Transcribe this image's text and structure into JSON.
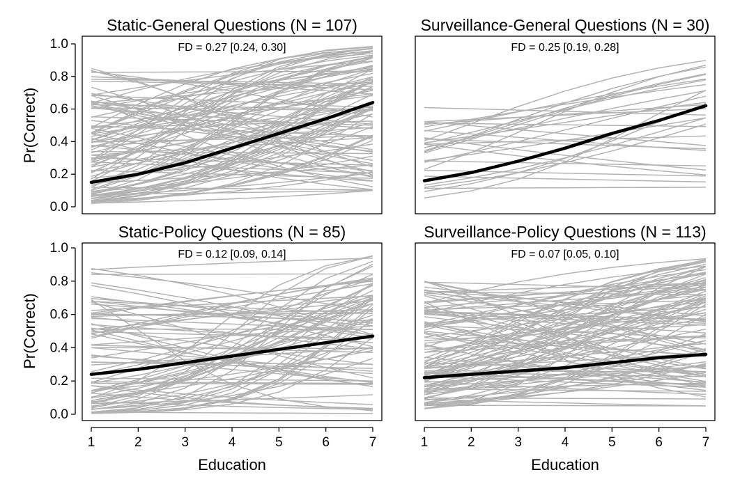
{
  "chart_data": [
    {
      "type": "line",
      "title": "Static-General Questions (N = 107)",
      "annotation": "FD = 0.27 [0.24, 0.30]",
      "xlabel": "",
      "ylabel": "Pr(Correct)",
      "x": [
        1,
        2,
        3,
        4,
        5,
        6,
        7
      ],
      "xticks": [
        "1",
        "2",
        "3",
        "4",
        "5",
        "6",
        "7"
      ],
      "yticks": [
        "0.0",
        "0.2",
        "0.4",
        "0.6",
        "0.8",
        "1.0"
      ],
      "xlim": [
        1,
        7
      ],
      "ylim": [
        0,
        1
      ],
      "grid": false,
      "gray_color": "#b3b3b3",
      "mean_color": "#000000",
      "mean_values": [
        0.15,
        0.2,
        0.27,
        0.36,
        0.45,
        0.54,
        0.64
      ],
      "individual_lines": {
        "count": 107,
        "start_range": [
          0.02,
          0.85
        ],
        "end_range": [
          0.1,
          0.99
        ]
      }
    },
    {
      "type": "line",
      "title": "Surveillance-General Questions (N = 30)",
      "annotation": "FD = 0.25 [0.19, 0.28]",
      "xlabel": "",
      "ylabel": "",
      "x": [
        1,
        2,
        3,
        4,
        5,
        6,
        7
      ],
      "xticks": [
        "1",
        "2",
        "3",
        "4",
        "5",
        "6",
        "7"
      ],
      "yticks": [],
      "xlim": [
        1,
        7
      ],
      "ylim": [
        0,
        1
      ],
      "grid": false,
      "gray_color": "#b3b3b3",
      "mean_color": "#000000",
      "mean_values": [
        0.16,
        0.21,
        0.28,
        0.36,
        0.45,
        0.53,
        0.62
      ],
      "individual_lines": {
        "count": 30,
        "start_range": [
          0.05,
          0.67
        ],
        "end_range": [
          0.12,
          0.9
        ]
      }
    },
    {
      "type": "line",
      "title": "Static-Policy Questions (N = 85)",
      "annotation": "FD = 0.12 [0.09, 0.14]",
      "xlabel": "Education",
      "ylabel": "Pr(Correct)",
      "x": [
        1,
        2,
        3,
        4,
        5,
        6,
        7
      ],
      "xticks": [
        "1",
        "2",
        "3",
        "4",
        "5",
        "6",
        "7"
      ],
      "yticks": [
        "0.0",
        "0.2",
        "0.4",
        "0.6",
        "0.8",
        "1.0"
      ],
      "xlim": [
        1,
        7
      ],
      "ylim": [
        0,
        1
      ],
      "grid": false,
      "gray_color": "#b3b3b3",
      "mean_color": "#000000",
      "mean_values": [
        0.24,
        0.27,
        0.31,
        0.35,
        0.39,
        0.43,
        0.47
      ],
      "individual_lines": {
        "count": 85,
        "start_range": [
          0.0,
          0.88
        ],
        "end_range": [
          0.0,
          0.96
        ]
      }
    },
    {
      "type": "line",
      "title": "Surveillance-Policy Questions (N = 113)",
      "annotation": "FD = 0.07 [0.05, 0.10]",
      "xlabel": "Education",
      "ylabel": "",
      "x": [
        1,
        2,
        3,
        4,
        5,
        6,
        7
      ],
      "xticks": [
        "1",
        "2",
        "3",
        "4",
        "5",
        "6",
        "7"
      ],
      "yticks": [],
      "xlim": [
        1,
        7
      ],
      "ylim": [
        0,
        1
      ],
      "grid": false,
      "gray_color": "#b3b3b3",
      "mean_color": "#000000",
      "mean_values": [
        0.22,
        0.24,
        0.26,
        0.28,
        0.31,
        0.34,
        0.36
      ],
      "individual_lines": {
        "count": 113,
        "start_range": [
          0.03,
          0.8
        ],
        "end_range": [
          0.05,
          0.95
        ]
      }
    }
  ]
}
